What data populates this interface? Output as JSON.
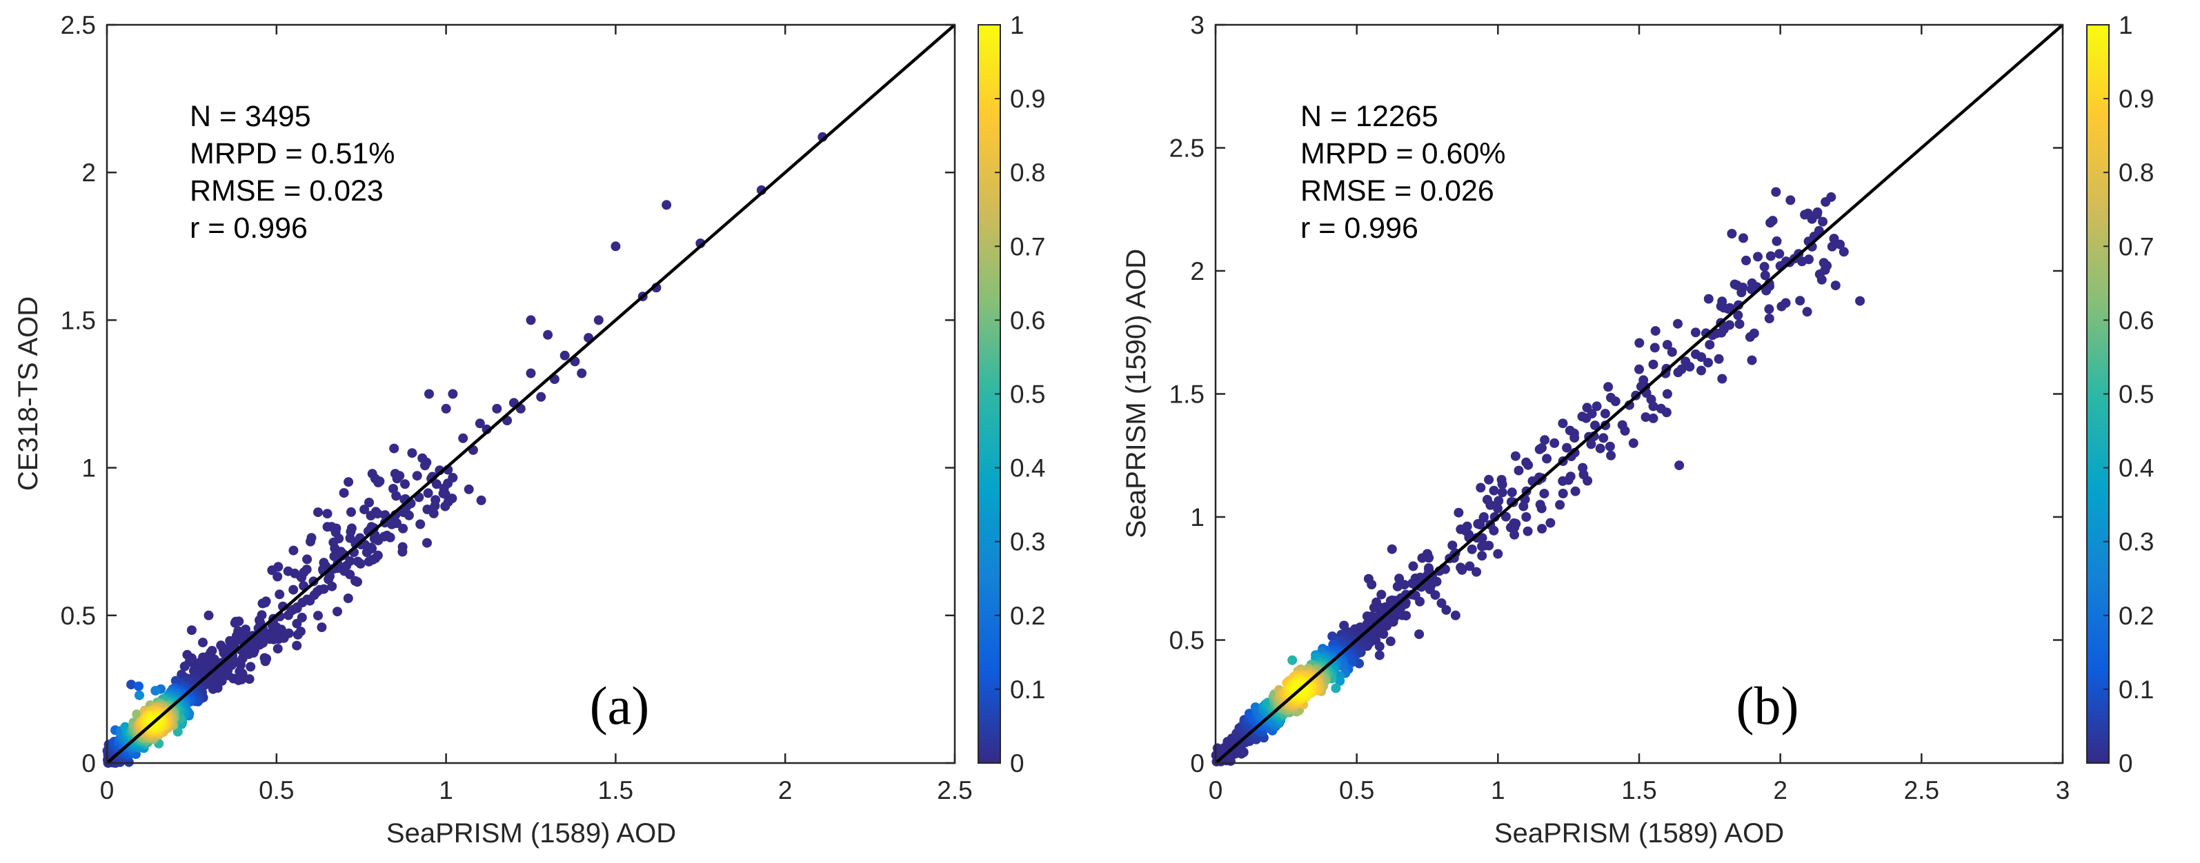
{
  "colors": {
    "axis": "#262626",
    "one_to_one": "#000000",
    "background": "#ffffff"
  },
  "colormap": {
    "name": "parula",
    "stops": [
      "#352a87",
      "#0f5cdd",
      "#1481d6",
      "#06a4ca",
      "#2eb7a4",
      "#87bf77",
      "#d1bb59",
      "#fec832",
      "#f9fb0e"
    ]
  },
  "chart_data": [
    {
      "type": "scatter",
      "panel_label": "(a)",
      "xlabel": "SeaPRISM (1589) AOD",
      "ylabel": "CE318-TS AOD",
      "xlim": [
        0,
        2.5
      ],
      "ylim": [
        0,
        2.5
      ],
      "xticks": [
        0,
        0.5,
        1,
        1.5,
        2,
        2.5
      ],
      "yticks": [
        0,
        0.5,
        1,
        1.5,
        2,
        2.5
      ],
      "xtick_labels": [
        "0",
        "0.5",
        "1",
        "1.5",
        "2",
        "2.5"
      ],
      "ytick_labels": [
        "0",
        "0.5",
        "1",
        "1.5",
        "2",
        "2.5"
      ],
      "one_to_one_line": true,
      "stats": [
        "N = 3495",
        "MRPD = 0.51%",
        "RMSE = 0.023",
        "r = 0.996"
      ],
      "colorbar": {
        "range": [
          0,
          1
        ],
        "ticks": [
          0,
          0.1,
          0.2,
          0.3,
          0.4,
          0.5,
          0.6,
          0.7,
          0.8,
          0.9,
          1
        ],
        "tick_labels": [
          "0",
          "0.1",
          "0.2",
          "0.3",
          "0.4",
          "0.5",
          "0.6",
          "0.7",
          "0.8",
          "0.9",
          "1"
        ]
      },
      "cluster": {
        "center": [
          0.14,
          0.14
        ],
        "spread": 0.07,
        "max_x": 1.0
      },
      "points": [
        [
          0.25,
          0.45
        ],
        [
          0.3,
          0.5
        ],
        [
          0.22,
          0.3
        ],
        [
          0.4,
          0.3
        ],
        [
          0.5,
          0.45
        ],
        [
          0.55,
          0.72
        ],
        [
          0.6,
          0.75
        ],
        [
          0.65,
          0.8
        ],
        [
          0.67,
          0.7
        ],
        [
          0.7,
          0.65
        ],
        [
          0.72,
          0.85
        ],
        [
          0.8,
          0.95
        ],
        [
          0.85,
          0.98
        ],
        [
          0.9,
          1.05
        ],
        [
          0.95,
          1.25
        ],
        [
          1.0,
          1.2
        ],
        [
          1.02,
          1.25
        ],
        [
          1.05,
          1.1
        ],
        [
          1.1,
          1.15
        ],
        [
          1.15,
          1.2
        ],
        [
          1.2,
          1.22
        ],
        [
          1.25,
          1.32
        ],
        [
          1.28,
          1.24
        ],
        [
          1.3,
          1.45
        ],
        [
          1.35,
          1.38
        ],
        [
          1.4,
          1.32
        ],
        [
          1.45,
          1.5
        ],
        [
          1.25,
          1.5
        ],
        [
          1.5,
          1.75
        ],
        [
          1.58,
          1.58
        ],
        [
          1.62,
          1.61
        ],
        [
          1.65,
          1.89
        ],
        [
          1.75,
          1.76
        ],
        [
          1.93,
          1.94
        ],
        [
          2.11,
          2.12
        ],
        [
          0.45,
          0.4
        ],
        [
          0.48,
          0.42
        ],
        [
          0.5,
          0.46
        ],
        [
          0.55,
          0.52
        ],
        [
          0.58,
          0.6
        ],
        [
          0.62,
          0.58
        ],
        [
          0.68,
          0.66
        ],
        [
          0.75,
          0.74
        ],
        [
          0.78,
          0.8
        ],
        [
          0.82,
          0.84
        ],
        [
          0.88,
          0.86
        ],
        [
          0.92,
          0.9
        ],
        [
          0.96,
          0.97
        ],
        [
          1.08,
          1.06
        ],
        [
          1.12,
          1.13
        ],
        [
          1.18,
          1.16
        ],
        [
          1.22,
          1.2
        ],
        [
          1.32,
          1.3
        ],
        [
          1.38,
          1.36
        ],
        [
          1.42,
          1.44
        ]
      ]
    },
    {
      "type": "scatter",
      "panel_label": "(b)",
      "xlabel": "SeaPRISM (1589) AOD",
      "ylabel": "SeaPRISM (1590) AOD",
      "xlim": [
        0,
        3
      ],
      "ylim": [
        0,
        3
      ],
      "xticks": [
        0,
        0.5,
        1,
        1.5,
        2,
        2.5,
        3
      ],
      "yticks": [
        0,
        0.5,
        1,
        1.5,
        2,
        2.5,
        3
      ],
      "xtick_labels": [
        "0",
        "0.5",
        "1",
        "1.5",
        "2",
        "2.5",
        "3"
      ],
      "ytick_labels": [
        "0",
        "0.5",
        "1",
        "1.5",
        "2",
        "2.5",
        "3"
      ],
      "one_to_one_line": true,
      "stats": [
        "N = 12265",
        "MRPD = 0.60%",
        "RMSE = 0.026",
        "r = 0.996"
      ],
      "colorbar": {
        "range": [
          0,
          1
        ],
        "ticks": [
          0,
          0.1,
          0.2,
          0.3,
          0.4,
          0.5,
          0.6,
          0.7,
          0.8,
          0.9,
          1
        ],
        "tick_labels": [
          "0",
          "0.1",
          "0.2",
          "0.3",
          "0.4",
          "0.5",
          "0.6",
          "0.7",
          "0.8",
          "0.9",
          "1"
        ]
      },
      "cluster": {
        "center": [
          0.3,
          0.3
        ],
        "spread": 0.11,
        "max_x": 2.2
      },
      "points": [
        [
          0.65,
          0.75
        ],
        [
          0.7,
          0.8
        ],
        [
          0.75,
          0.85
        ],
        [
          0.8,
          0.65
        ],
        [
          0.85,
          0.6
        ],
        [
          0.95,
          1.0
        ],
        [
          1.0,
          0.85
        ],
        [
          1.05,
          1.1
        ],
        [
          1.1,
          1.0
        ],
        [
          1.2,
          1.3
        ],
        [
          1.3,
          1.2
        ],
        [
          1.35,
          1.45
        ],
        [
          1.45,
          1.35
        ],
        [
          1.5,
          1.6
        ],
        [
          1.55,
          1.45
        ],
        [
          1.6,
          1.7
        ],
        [
          1.65,
          1.6
        ],
        [
          1.7,
          1.75
        ],
        [
          1.75,
          1.7
        ],
        [
          1.8,
          1.85
        ],
        [
          1.85,
          1.82
        ],
        [
          1.9,
          1.95
        ],
        [
          1.95,
          1.92
        ],
        [
          2.0,
          2.02
        ],
        [
          2.05,
          2.05
        ],
        [
          2.1,
          2.12
        ],
        [
          2.15,
          2.2
        ],
        [
          2.18,
          2.3
        ],
        [
          2.16,
          2.28
        ],
        [
          2.12,
          2.14
        ],
        [
          1.48,
          1.3
        ],
        [
          1.4,
          1.25
        ],
        [
          1.15,
          1.05
        ],
        [
          0.9,
          0.8
        ],
        [
          1.25,
          1.15
        ],
        [
          1.6,
          1.5
        ],
        [
          1.72,
          1.65
        ],
        [
          1.82,
          1.78
        ],
        [
          1.55,
          1.62
        ],
        [
          1.38,
          1.42
        ]
      ]
    }
  ]
}
